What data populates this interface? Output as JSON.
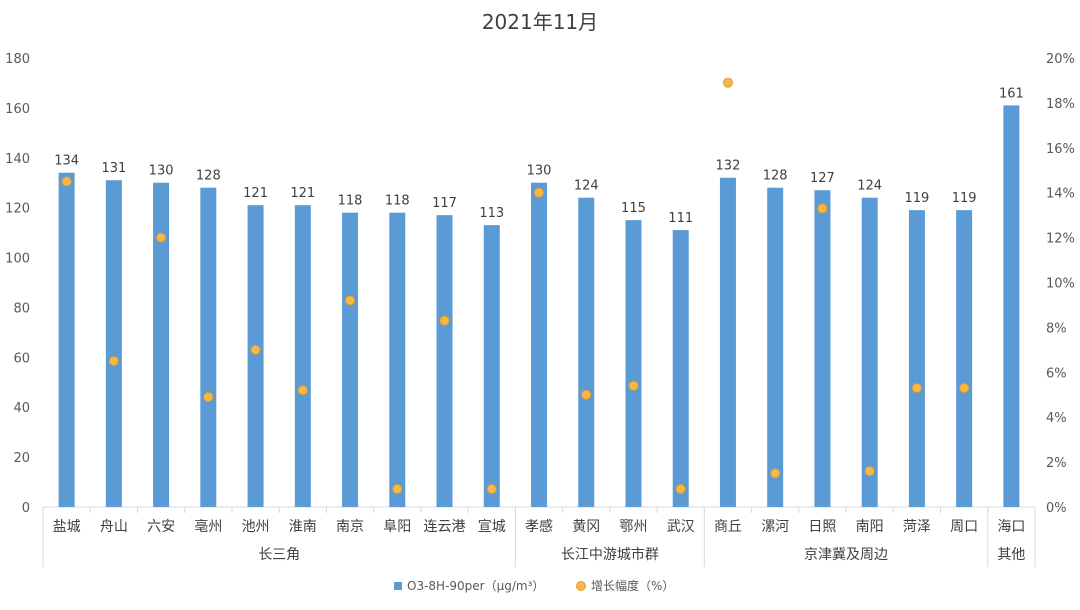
{
  "chart_data": {
    "type": "bar",
    "title": "2021年11月",
    "categories": [
      "盐城",
      "舟山",
      "六安",
      "亳州",
      "池州",
      "淮南",
      "南京",
      "阜阳",
      "连云港",
      "宣城",
      "孝感",
      "黄冈",
      "鄂州",
      "武汉",
      "商丘",
      "漯河",
      "日照",
      "南阳",
      "菏泽",
      "周口",
      "海口"
    ],
    "groups": [
      {
        "label": "长三角",
        "count": 10
      },
      {
        "label": "长江中游城市群",
        "count": 4
      },
      {
        "label": "京津冀及周边",
        "count": 6
      },
      {
        "label": "其他",
        "count": 1
      }
    ],
    "series": [
      {
        "name": "O3-8H-90per（μg/m³）",
        "type": "bar",
        "axis": "left",
        "color": "#5b9bd5",
        "values": [
          134,
          131,
          130,
          128,
          121,
          121,
          118,
          118,
          117,
          113,
          130,
          124,
          115,
          111,
          132,
          128,
          127,
          124,
          119,
          119,
          161
        ]
      },
      {
        "name": "增长幅度（%）",
        "type": "scatter",
        "axis": "right",
        "color": "#f5b94a",
        "values": [
          14.5,
          6.5,
          12.0,
          4.9,
          7.0,
          5.2,
          9.2,
          0.8,
          8.3,
          0.8,
          14.0,
          5.0,
          5.4,
          0.8,
          18.9,
          1.5,
          13.3,
          1.6,
          5.3,
          5.3,
          null
        ]
      }
    ],
    "y_left": {
      "min": 0,
      "max": 180,
      "step": 20,
      "ticks": [
        "0",
        "20",
        "40",
        "60",
        "80",
        "100",
        "120",
        "140",
        "160",
        "180"
      ]
    },
    "y_right": {
      "min": 0,
      "max": 20,
      "step": 2,
      "ticks": [
        "0%",
        "2%",
        "4%",
        "6%",
        "8%",
        "10%",
        "12%",
        "14%",
        "16%",
        "18%",
        "20%"
      ]
    },
    "legend_position": "bottom",
    "grid": false
  }
}
